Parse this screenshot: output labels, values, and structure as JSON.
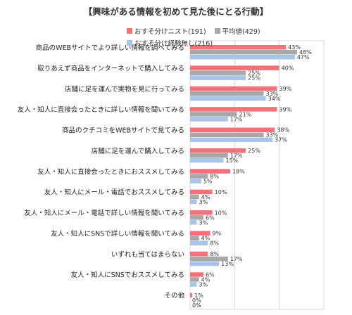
{
  "chart_data": {
    "type": "bar",
    "orientation": "horizontal",
    "title": "【興味がある情報を初めて見た後にとる行動】",
    "xlim": [
      0,
      60
    ],
    "grid": true,
    "legend_position": "top-right",
    "categories": [
      "商品のWEBサイトでより詳しい情報を調べてみる",
      "取りあえず商品をインターネットで購入してみる",
      "店舗に足を運んで実物を見に行ってみる",
      "友人・知人に直接会ったときに詳しい情報を聞いてみる",
      "商品のクチコミをWEBサイトで見てみる",
      "店舗に足を運んで購入してみる",
      "友人・知人に直接会ったときにおススメしてみる",
      "友人・知人にメール・電話でおススメしてみる",
      "友人・知人にメール・電話で詳しい情報を聞いてみる",
      "友人・知人にSNSで詳しい情報を聞いてみる",
      "いずれも当てはまらない",
      "友人・知人にSNSでおススメしてみる",
      "その他"
    ],
    "series": [
      {
        "name": "おすそ分けニスト(191)",
        "color": "#f4717a",
        "values": [
          43,
          40,
          39,
          39,
          38,
          25,
          18,
          10,
          10,
          9,
          8,
          6,
          1
        ]
      },
      {
        "name": "平均値(429)",
        "color": "#a8a8a8",
        "values": [
          48,
          25,
          33,
          21,
          33,
          17,
          8,
          4,
          6,
          4,
          17,
          4,
          0
        ]
      },
      {
        "name": "おすそ分け経験無し(216)",
        "color": "#a9c4e6",
        "values": [
          47,
          25,
          34,
          17,
          37,
          15,
          5,
          3,
          3,
          8,
          13,
          3,
          0
        ]
      }
    ],
    "value_suffix": "%"
  }
}
